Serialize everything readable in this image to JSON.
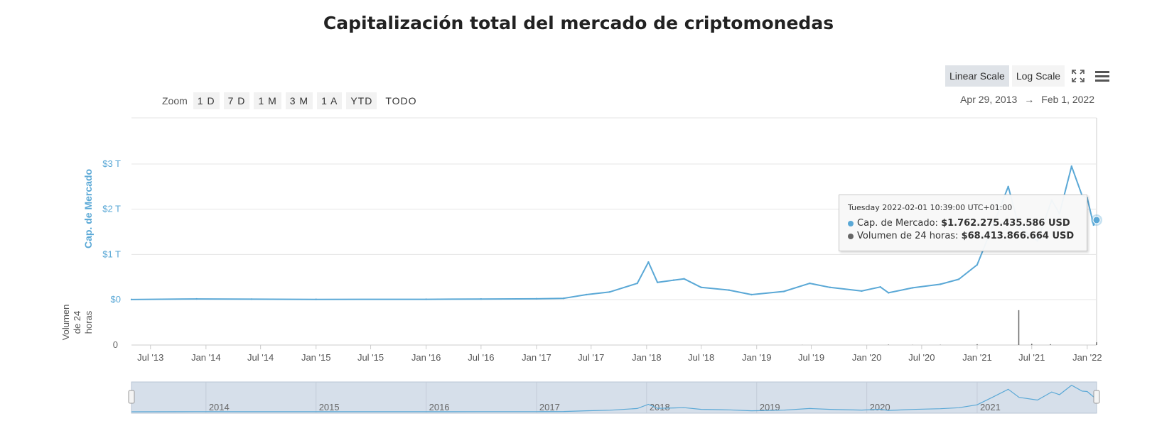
{
  "page": {
    "title": "Capitalización total del mercado de criptomonedas"
  },
  "toolbar": {
    "zoom_label": "Zoom",
    "zoom_buttons": [
      "1 D",
      "7 D",
      "1 M",
      "3 M",
      "1 A",
      "YTD",
      "TODO"
    ],
    "range_from": "Apr 29, 2013",
    "range_arrow": "→",
    "range_to": "Feb 1, 2022",
    "linear_scale": "Linear Scale",
    "log_scale": "Log Scale",
    "active_scale": "Linear Scale",
    "fullscreen_icon": "fullscreen-icon",
    "menu_icon": "hamburger-menu-icon"
  },
  "tooltip": {
    "date": "Tuesday 2022-02-01 10:39:00 UTC+01:00",
    "cap_label": "Cap. de Mercado:",
    "cap_value": "$1.762.275.435.586 USD",
    "vol_label": "Volumen de 24 horas:",
    "vol_value": "$68.413.866.664 USD"
  },
  "chart_data": {
    "type": "line",
    "xlabel": "",
    "ylabel": "Cap. de Mercado",
    "y2label": "Volumen de 24 horas",
    "ylim": [
      0,
      3.5
    ],
    "y_unit": "T USD",
    "y_ticks": [
      "$0",
      "$1 T",
      "$2 T",
      "$3 T"
    ],
    "y2_ticks": [
      "0"
    ],
    "x_range": [
      "2013-04-29",
      "2022-02-01"
    ],
    "x_ticks": [
      "Jul '13",
      "Jan '14",
      "Jul '14",
      "Jan '15",
      "Jul '15",
      "Jan '16",
      "Jul '16",
      "Jan '17",
      "Jul '17",
      "Jan '18",
      "Jul '18",
      "Jan '19",
      "Jul '19",
      "Jan '20",
      "Jul '20",
      "Jan '21",
      "Jul '21",
      "Jan '22"
    ],
    "navigator_labels": [
      "2014",
      "2015",
      "2016",
      "2017",
      "2018",
      "2019",
      "2020",
      "2021"
    ],
    "grid": true,
    "colors": {
      "market_cap": "#5aa8d6",
      "volume": "#666666",
      "navigator_bg": "#d6dfea"
    },
    "series": [
      {
        "name": "Cap. de Mercado",
        "x": [
          "2013-04-29",
          "2013-12-01",
          "2014-06-01",
          "2015-01-01",
          "2016-01-01",
          "2016-07-01",
          "2017-01-01",
          "2017-04-01",
          "2017-06-15",
          "2017-09-01",
          "2017-12-01",
          "2018-01-07",
          "2018-02-06",
          "2018-04-01",
          "2018-05-05",
          "2018-07-01",
          "2018-10-01",
          "2018-12-15",
          "2019-04-01",
          "2019-06-26",
          "2019-09-01",
          "2019-12-15",
          "2020-02-15",
          "2020-03-13",
          "2020-06-01",
          "2020-09-01",
          "2020-11-01",
          "2021-01-01",
          "2021-02-20",
          "2021-04-14",
          "2021-05-20",
          "2021-07-20",
          "2021-09-05",
          "2021-10-01",
          "2021-11-10",
          "2021-12-15",
          "2022-01-01",
          "2022-01-22",
          "2022-02-01"
        ],
        "values": [
          0.002,
          0.014,
          0.009,
          0.005,
          0.007,
          0.012,
          0.018,
          0.028,
          0.11,
          0.17,
          0.36,
          0.83,
          0.38,
          0.43,
          0.46,
          0.27,
          0.21,
          0.11,
          0.18,
          0.36,
          0.27,
          0.19,
          0.28,
          0.15,
          0.26,
          0.34,
          0.45,
          0.77,
          1.6,
          2.5,
          1.6,
          1.3,
          2.2,
          1.9,
          2.95,
          2.3,
          2.25,
          1.65,
          1.76
        ]
      },
      {
        "name": "Volumen de 24 horas",
        "x": [
          "2013-04-29",
          "2019-06-01",
          "2020-03-13",
          "2020-06-01",
          "2020-09-01",
          "2021-01-01",
          "2021-05-19",
          "2021-07-01",
          "2021-09-01",
          "2022-02-01"
        ],
        "values": [
          0,
          0.003,
          0.01,
          0.004,
          0.006,
          0.02,
          0.85,
          0.03,
          0.02,
          0.068
        ]
      }
    ]
  }
}
